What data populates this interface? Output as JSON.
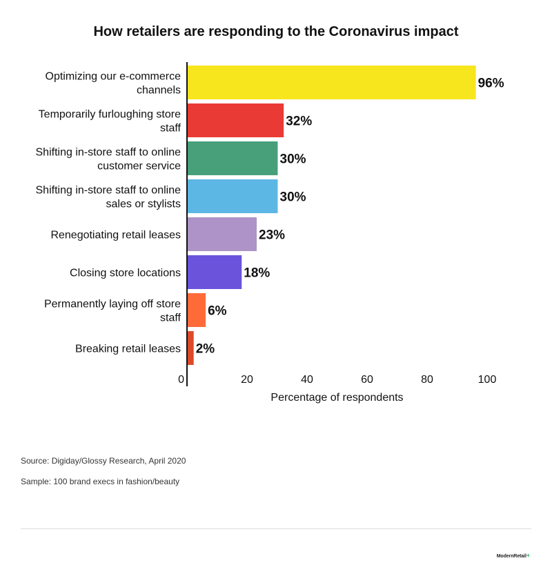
{
  "title": "How retailers are responding to the Coronavirus impact",
  "source": "Source: Digiday/Glossy Research, April 2020",
  "sample": "Sample: 100 brand execs in fashion/beauty",
  "brand": {
    "name": "ModernRetail",
    "mark": "+"
  },
  "chart_data": {
    "type": "bar",
    "orientation": "horizontal",
    "title": "How retailers are responding to the Coronavirus impact",
    "xlabel": "Percentage of respondents",
    "ylabel": "",
    "xlim": [
      0,
      100
    ],
    "xticks": [
      0,
      20,
      40,
      60,
      80,
      100
    ],
    "grid": false,
    "legend": "none",
    "categories": [
      [
        "Optimizing our e-commerce",
        "channels"
      ],
      [
        "Temporarily furloughing store",
        "staff"
      ],
      [
        "Shifting in-store staff to online",
        "customer service"
      ],
      [
        "Shifting in-store staff to online",
        "sales or stylists"
      ],
      [
        "Renegotiating retail leases"
      ],
      [
        "Closing store locations"
      ],
      [
        "Permanently laying off store",
        "staff"
      ],
      [
        "Breaking retail leases"
      ]
    ],
    "values": [
      96,
      32,
      30,
      30,
      23,
      18,
      6,
      2
    ],
    "value_labels": [
      "96%",
      "32%",
      "30%",
      "30%",
      "23%",
      "18%",
      "6%",
      "2%"
    ],
    "colors": [
      "#f7e51e",
      "#e93a35",
      "#47a07a",
      "#5db7e5",
      "#ad93c8",
      "#6b53db",
      "#ff6a39",
      "#dc4a2a"
    ]
  }
}
